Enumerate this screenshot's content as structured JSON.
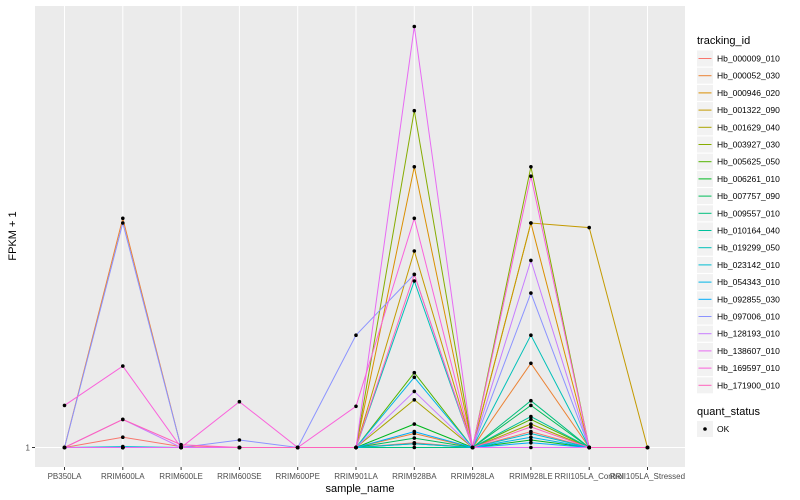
{
  "chart_data": {
    "type": "line",
    "xlabel": "sample_name",
    "ylabel": "FPKM + 1",
    "y_tick_labels": [
      "1"
    ],
    "ylim": [
      1,
      1.45
    ],
    "grid": true,
    "legend_placement": "right",
    "categories": [
      "PB350LA",
      "RRIM600LA",
      "RRIM600LE",
      "RRIM600SE",
      "RRIM600PE",
      "RRIM901LA",
      "RRIM928BA",
      "RRIM928LA",
      "RRIM928LE",
      "RRII105LA_Control",
      "RRII105LA_Stressed"
    ],
    "legend_color_title": "tracking_id",
    "legend_shape_title": "quant_status",
    "shape_entries": [
      "OK"
    ],
    "series": [
      {
        "name": "Hb_000009_010",
        "color": "#F8766D",
        "values": [
          1.0,
          1.011,
          1.001,
          1.0,
          1.0,
          1.0,
          1.005,
          1.0,
          1.017,
          1.0,
          1.0
        ]
      },
      {
        "name": "Hb_000052_030",
        "color": "#EB8335",
        "values": [
          1.0,
          1.245,
          1.0,
          1.0,
          1.0,
          1.0,
          1.015,
          1.0,
          1.09,
          1.0,
          1.0
        ]
      },
      {
        "name": "Hb_000946_020",
        "color": "#DA8F00",
        "values": [
          1.0,
          1.0,
          1.0,
          1.0,
          1.0,
          1.0,
          1.3,
          1.0,
          1.24,
          1.0,
          1.0
        ]
      },
      {
        "name": "Hb_001322_090",
        "color": "#C49A00",
        "values": [
          1.0,
          1.0,
          1.0,
          1.0,
          1.0,
          1.0,
          1.21,
          1.0,
          1.24,
          1.235,
          1.0
        ]
      },
      {
        "name": "Hb_001629_040",
        "color": "#A9A400",
        "values": [
          1.0,
          1.0,
          1.0,
          1.0,
          1.0,
          1.0,
          1.051,
          1.0,
          1.025,
          1.0,
          1.0
        ]
      },
      {
        "name": "Hb_003927_030",
        "color": "#86AC00",
        "values": [
          1.0,
          1.0,
          1.0,
          1.0,
          1.0,
          1.0,
          1.36,
          1.0,
          1.3,
          1.0,
          1.0
        ]
      },
      {
        "name": "Hb_005625_050",
        "color": "#53B400",
        "values": [
          1.0,
          1.0,
          1.0,
          1.0,
          1.0,
          1.0,
          1.08,
          1.0,
          1.03,
          1.0,
          1.0
        ]
      },
      {
        "name": "Hb_006261_010",
        "color": "#00B81F",
        "values": [
          1.0,
          1.0,
          1.0,
          1.0,
          1.0,
          1.0,
          1.025,
          1.0,
          1.008,
          1.0,
          1.0
        ]
      },
      {
        "name": "Hb_007757_090",
        "color": "#00BC59",
        "values": [
          1.0,
          1.0,
          1.0,
          1.0,
          1.0,
          1.0,
          1.01,
          1.0,
          1.045,
          1.0,
          1.0
        ]
      },
      {
        "name": "Hb_009557_010",
        "color": "#00BF7D",
        "values": [
          1.0,
          1.0,
          1.0,
          1.0,
          1.0,
          1.0,
          1.0,
          1.0,
          1.05,
          1.0,
          1.0
        ]
      },
      {
        "name": "Hb_010164_040",
        "color": "#00C19C",
        "values": [
          1.0,
          1.0,
          1.0,
          1.0,
          1.0,
          1.0,
          1.004,
          1.0,
          1.033,
          1.0,
          1.0
        ]
      },
      {
        "name": "Hb_019299_050",
        "color": "#00C0B8",
        "values": [
          1.0,
          1.0,
          1.0,
          1.0,
          1.0,
          1.0,
          1.178,
          1.0,
          1.12,
          1.0,
          1.0
        ]
      },
      {
        "name": "Hb_023142_010",
        "color": "#00BCD1",
        "values": [
          1.0,
          1.001,
          1.0,
          1.0,
          1.0,
          1.0,
          1.004,
          1.0,
          1.015,
          1.0,
          1.0
        ]
      },
      {
        "name": "Hb_054343_010",
        "color": "#00B5E7",
        "values": [
          1.0,
          1.0,
          1.0,
          1.0,
          1.0,
          1.0,
          1.075,
          1.0,
          1.011,
          1.0,
          1.0
        ]
      },
      {
        "name": "Hb_092855_030",
        "color": "#00ABFA",
        "values": [
          1.0,
          1.0,
          1.0,
          1.0,
          1.0,
          1.0,
          1.017,
          1.0,
          1.005,
          1.0,
          1.0
        ]
      },
      {
        "name": "Hb_097006_010",
        "color": "#8B93FF",
        "values": [
          1.0,
          1.24,
          1.0,
          1.008,
          1.0,
          1.12,
          1.185,
          1.0,
          1.165,
          1.0,
          1.0
        ]
      },
      {
        "name": "Hb_128193_010",
        "color": "#C77CFF",
        "values": [
          1.0,
          1.03,
          1.0,
          1.0,
          1.0,
          1.0,
          1.06,
          1.0,
          1.2,
          1.0,
          1.0
        ]
      },
      {
        "name": "Hb_138607_010",
        "color": "#E76BF3",
        "values": [
          1.0,
          1.0,
          1.0,
          1.0,
          1.0,
          1.0,
          1.45,
          1.0,
          1.0,
          1.0,
          1.0
        ]
      },
      {
        "name": "Hb_169597_010",
        "color": "#FA62DB",
        "values": [
          1.045,
          1.087,
          1.0,
          1.049,
          1.0,
          1.044,
          1.245,
          1.0,
          1.29,
          1.0,
          1.0
        ]
      },
      {
        "name": "Hb_171900_010",
        "color": "#FF62BC",
        "values": [
          1.0,
          1.03,
          1.003,
          1.0,
          1.0,
          1.0,
          1.185,
          1.0,
          1.022,
          1.0,
          1.0
        ]
      }
    ]
  }
}
